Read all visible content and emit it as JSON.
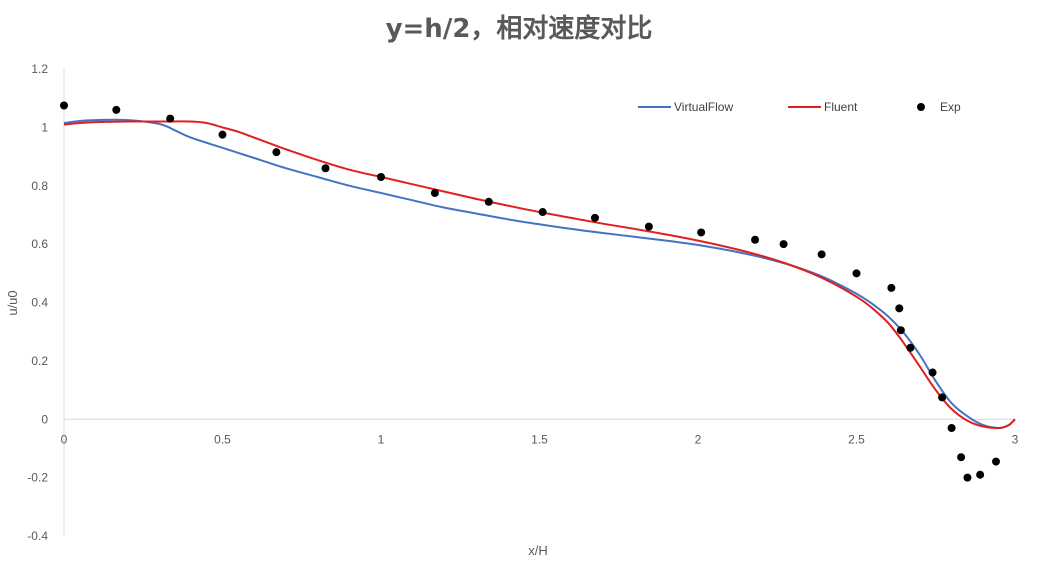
{
  "chart_data": {
    "type": "line",
    "title": "y=h/2，相对速度对比",
    "xlabel": "x/H",
    "ylabel": "u/u0",
    "xlim": [
      0,
      3
    ],
    "ylim": [
      -0.4,
      1.2
    ],
    "x_ticks": [
      "0",
      "0.5",
      "1",
      "1.5",
      "2",
      "2.5",
      "3"
    ],
    "y_ticks": [
      "1.2",
      "1",
      "0.8",
      "0.6",
      "0.4",
      "0.2",
      "0",
      "-0.2",
      "-0.4"
    ],
    "grid": "zero-line",
    "legend_position": "top-right",
    "series": [
      {
        "name": "VirtualFlow",
        "color": "#4472C4",
        "style": "line",
        "points": [
          [
            0,
            1.015
          ],
          [
            0.05,
            1.022
          ],
          [
            0.1,
            1.025
          ],
          [
            0.2,
            1.025
          ],
          [
            0.3,
            1.012
          ],
          [
            0.35,
            0.99
          ],
          [
            0.4,
            0.965
          ],
          [
            0.5,
            0.93
          ],
          [
            0.6,
            0.895
          ],
          [
            0.7,
            0.86
          ],
          [
            0.8,
            0.83
          ],
          [
            0.9,
            0.8
          ],
          [
            1.0,
            0.775
          ],
          [
            1.1,
            0.75
          ],
          [
            1.2,
            0.725
          ],
          [
            1.3,
            0.705
          ],
          [
            1.4,
            0.685
          ],
          [
            1.5,
            0.668
          ],
          [
            1.6,
            0.652
          ],
          [
            1.7,
            0.638
          ],
          [
            1.8,
            0.625
          ],
          [
            1.9,
            0.612
          ],
          [
            2.0,
            0.597
          ],
          [
            2.1,
            0.578
          ],
          [
            2.2,
            0.555
          ],
          [
            2.3,
            0.525
          ],
          [
            2.4,
            0.485
          ],
          [
            2.5,
            0.43
          ],
          [
            2.55,
            0.395
          ],
          [
            2.6,
            0.352
          ],
          [
            2.65,
            0.295
          ],
          [
            2.7,
            0.22
          ],
          [
            2.75,
            0.13
          ],
          [
            2.8,
            0.055
          ],
          [
            2.85,
            0.01
          ],
          [
            2.9,
            -0.02
          ],
          [
            2.95,
            -0.03
          ],
          [
            2.98,
            -0.02
          ],
          [
            3.0,
            0.0
          ]
        ]
      },
      {
        "name": "Fluent",
        "color": "#E0201F",
        "style": "line",
        "points": [
          [
            0,
            1.01
          ],
          [
            0.05,
            1.015
          ],
          [
            0.1,
            1.018
          ],
          [
            0.2,
            1.02
          ],
          [
            0.3,
            1.02
          ],
          [
            0.4,
            1.02
          ],
          [
            0.45,
            1.015
          ],
          [
            0.5,
            1.0
          ],
          [
            0.55,
            0.985
          ],
          [
            0.6,
            0.965
          ],
          [
            0.7,
            0.925
          ],
          [
            0.8,
            0.888
          ],
          [
            0.9,
            0.855
          ],
          [
            1.0,
            0.83
          ],
          [
            1.1,
            0.805
          ],
          [
            1.2,
            0.78
          ],
          [
            1.3,
            0.755
          ],
          [
            1.4,
            0.732
          ],
          [
            1.5,
            0.71
          ],
          [
            1.6,
            0.69
          ],
          [
            1.7,
            0.67
          ],
          [
            1.8,
            0.652
          ],
          [
            1.9,
            0.633
          ],
          [
            2.0,
            0.612
          ],
          [
            2.1,
            0.588
          ],
          [
            2.2,
            0.56
          ],
          [
            2.3,
            0.525
          ],
          [
            2.4,
            0.48
          ],
          [
            2.5,
            0.42
          ],
          [
            2.55,
            0.38
          ],
          [
            2.6,
            0.33
          ],
          [
            2.65,
            0.26
          ],
          [
            2.7,
            0.18
          ],
          [
            2.75,
            0.1
          ],
          [
            2.8,
            0.035
          ],
          [
            2.85,
            -0.005
          ],
          [
            2.9,
            -0.025
          ],
          [
            2.95,
            -0.03
          ],
          [
            2.98,
            -0.02
          ],
          [
            3.0,
            0.0
          ]
        ]
      },
      {
        "name": "Exp",
        "color": "#000000",
        "style": "scatter",
        "points": [
          [
            0,
            1.075
          ],
          [
            0.165,
            1.06
          ],
          [
            0.335,
            1.03
          ],
          [
            0.5,
            0.975
          ],
          [
            0.67,
            0.915
          ],
          [
            0.825,
            0.86
          ],
          [
            1.0,
            0.83
          ],
          [
            1.17,
            0.775
          ],
          [
            1.34,
            0.745
          ],
          [
            1.51,
            0.71
          ],
          [
            1.675,
            0.69
          ],
          [
            1.845,
            0.66
          ],
          [
            2.01,
            0.64
          ],
          [
            2.18,
            0.615
          ],
          [
            2.27,
            0.6
          ],
          [
            2.39,
            0.565
          ],
          [
            2.5,
            0.5
          ],
          [
            2.61,
            0.45
          ],
          [
            2.635,
            0.38
          ],
          [
            2.64,
            0.305
          ],
          [
            2.67,
            0.245
          ],
          [
            2.74,
            0.16
          ],
          [
            2.77,
            0.075
          ],
          [
            2.8,
            -0.03
          ],
          [
            2.83,
            -0.13
          ],
          [
            2.85,
            -0.2
          ],
          [
            2.89,
            -0.19
          ],
          [
            2.94,
            -0.145
          ]
        ]
      }
    ]
  }
}
